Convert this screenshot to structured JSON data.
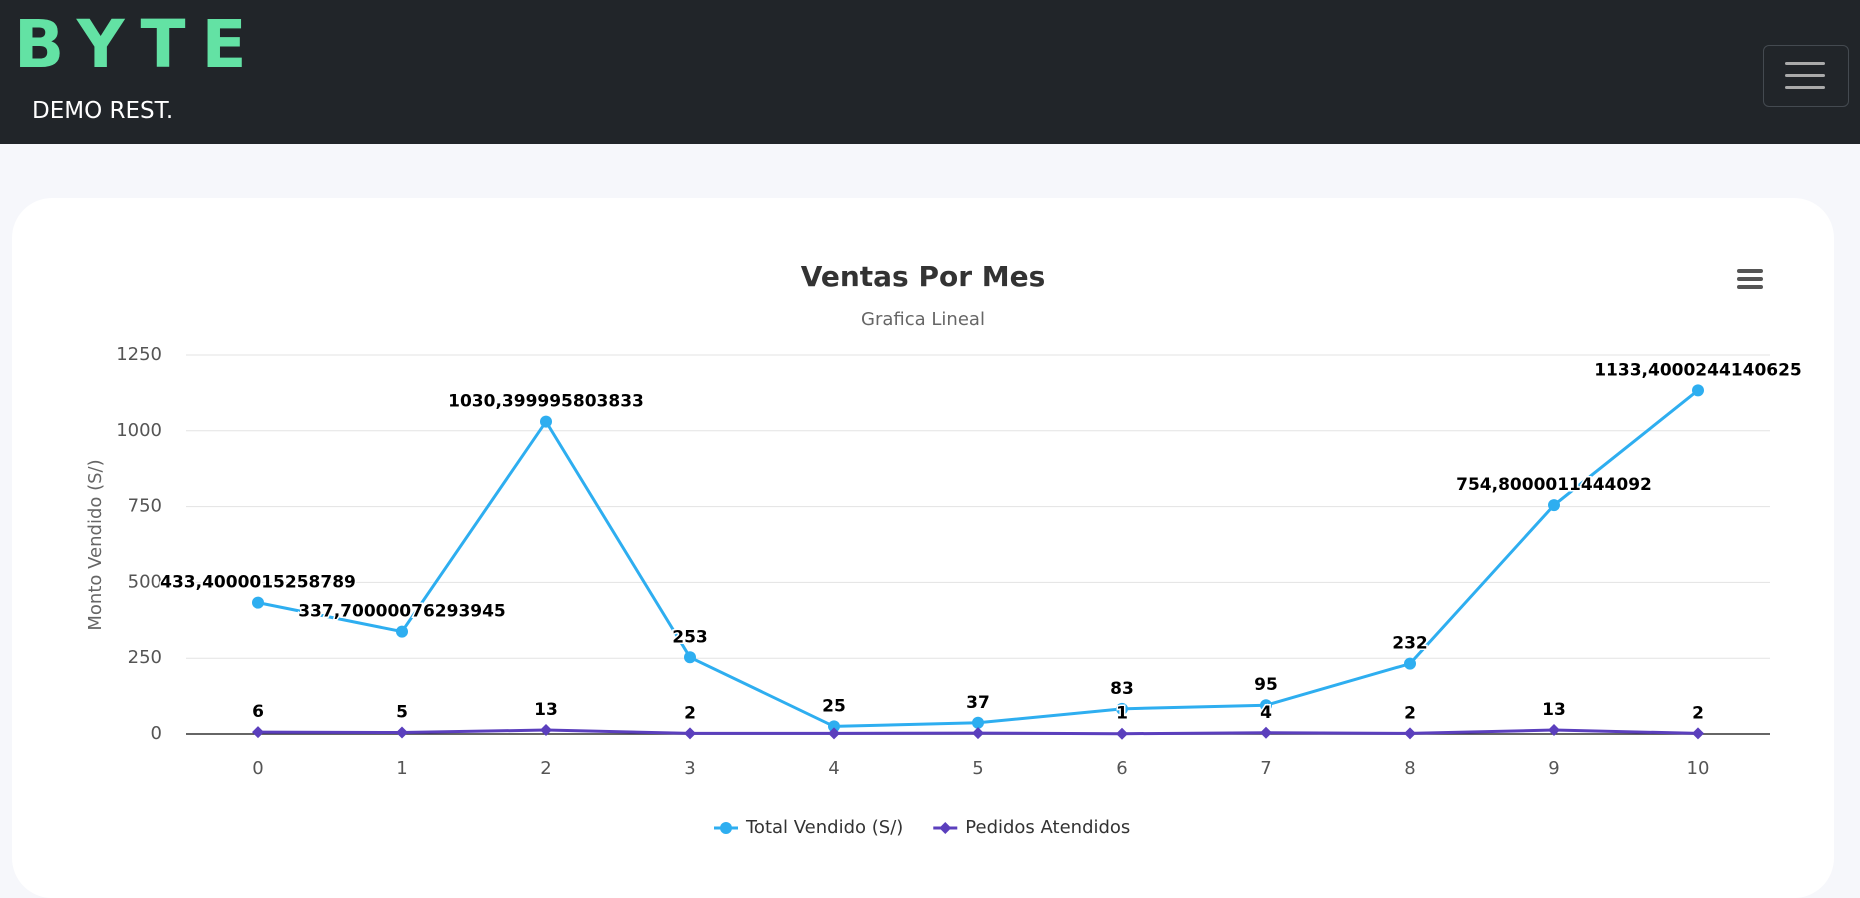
{
  "header": {
    "logo": "BYTE",
    "subtitle": "DEMO REST."
  },
  "chart_data": {
    "type": "line",
    "title": "Ventas Por Mes",
    "subtitle": "Grafica Lineal",
    "y_label": "Monto Vendido (S/)",
    "categories": [
      "0",
      "1",
      "2",
      "3",
      "4",
      "5",
      "6",
      "7",
      "8",
      "9",
      "10"
    ],
    "ylim": [
      0,
      1250
    ],
    "yticks": [
      0,
      250,
      500,
      750,
      1000,
      1250
    ],
    "grid": true,
    "legend": "bottom",
    "series": [
      {
        "name": "Total Vendido (S/)",
        "color": "#2eaef0",
        "marker": "circle",
        "values": [
          433.4000015258789,
          337.70000076293945,
          1030.399995803833,
          253,
          25,
          37,
          83,
          95,
          232,
          754.8000011444092,
          1133.4000244140625
        ],
        "value_labels": [
          "433,4000015258789",
          "337,70000076293945",
          "1030,399995803833",
          "253",
          "25",
          "37",
          "83",
          "95",
          "232",
          "754,8000011444092",
          "1133,4000244140625"
        ]
      },
      {
        "name": "Pedidos Atendidos",
        "color": "#5b3fbd",
        "marker": "diamond",
        "values": [
          6,
          5,
          13,
          2,
          2,
          3,
          1,
          4,
          2,
          13,
          2
        ],
        "value_labels": [
          "6",
          "5",
          "13",
          "2",
          null,
          null,
          "1",
          "4",
          "2",
          "13",
          "2"
        ]
      }
    ]
  }
}
